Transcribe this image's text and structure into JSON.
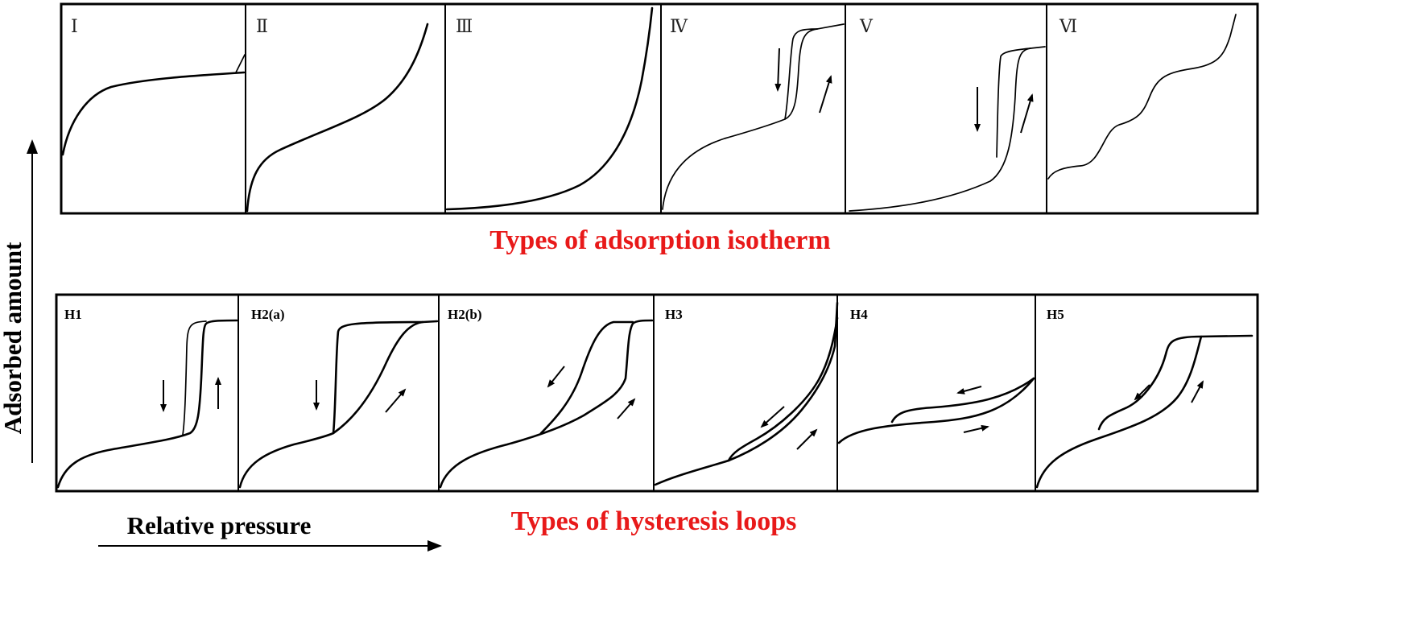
{
  "isotherm_panels": {
    "caption": "Types of adsorption isotherm",
    "labels": [
      "Ⅰ",
      "Ⅱ",
      "Ⅲ",
      "Ⅳ",
      "Ⅴ",
      "Ⅵ"
    ]
  },
  "hysteresis_panels": {
    "caption": "Types of hysteresis loops",
    "labels": [
      "H1",
      "H2(a)",
      "H2(b)",
      "H3",
      "H4",
      "H5"
    ]
  },
  "axes": {
    "y_label": "Adsorbed amount",
    "x_label": "Relative pressure"
  },
  "colors": {
    "caption": "#e81919",
    "ink": "#000000"
  }
}
